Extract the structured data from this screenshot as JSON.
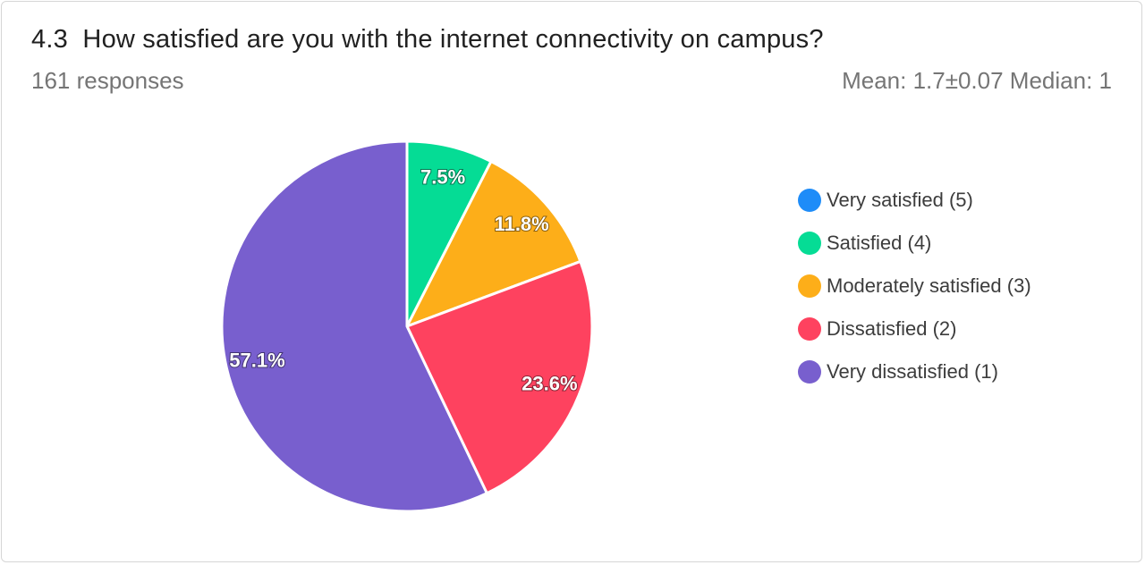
{
  "header": {
    "title": "4.3  How satisfied are you with the internet connectivity on campus?",
    "responses": "161 responses",
    "stats": "Mean: 1.7±0.07 Median: 1"
  },
  "chart_data": {
    "type": "pie",
    "title": "4.3  How satisfied are you with the internet connectivity on campus?",
    "subtitle": "161 responses",
    "legend_position": "right",
    "categories": [
      "Very satisfied (5)",
      "Satisfied (4)",
      "Moderately satisfied (3)",
      "Dissatisfied (2)",
      "Very dissatisfied (1)"
    ],
    "values": [
      0,
      7.5,
      11.8,
      23.6,
      57.1
    ],
    "labels": [
      "",
      "7.5%",
      "11.8%",
      "23.6%",
      "57.1%"
    ],
    "colors": [
      "#1e8cf8",
      "#05dc95",
      "#fdae19",
      "#fe425f",
      "#785fce"
    ]
  },
  "legend": {
    "items": [
      {
        "label": "Very satisfied (5)",
        "color": "#1e8cf8"
      },
      {
        "label": "Satisfied (4)",
        "color": "#05dc95"
      },
      {
        "label": "Moderately satisfied (3)",
        "color": "#fdae19"
      },
      {
        "label": "Dissatisfied (2)",
        "color": "#fe425f"
      },
      {
        "label": "Very dissatisfied (1)",
        "color": "#785fce"
      }
    ]
  }
}
